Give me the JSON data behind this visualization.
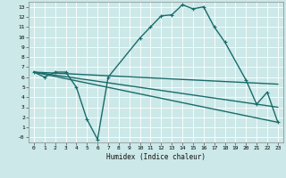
{
  "title": "",
  "xlabel": "Humidex (Indice chaleur)",
  "bg_color": "#cce8e8",
  "grid_color": "#ffffff",
  "line_color": "#1a6b6b",
  "xlim": [
    -0.5,
    23.5
  ],
  "ylim": [
    -0.5,
    13.5
  ],
  "xticks": [
    0,
    1,
    2,
    3,
    4,
    5,
    6,
    7,
    8,
    9,
    10,
    11,
    12,
    13,
    14,
    15,
    16,
    17,
    18,
    19,
    20,
    21,
    22,
    23
  ],
  "yticks": [
    0,
    1,
    2,
    3,
    4,
    5,
    6,
    7,
    8,
    9,
    10,
    11,
    12,
    13
  ],
  "ytick_labels": [
    "-0",
    "1",
    "2",
    "3",
    "4",
    "5",
    "6",
    "7",
    "8",
    "9",
    "10",
    "11",
    "12",
    "13"
  ],
  "curve1_x": [
    0,
    1,
    2,
    3,
    4,
    5,
    6,
    7,
    10,
    11,
    12,
    13,
    14,
    15,
    16,
    17,
    18,
    20,
    21,
    22,
    23
  ],
  "curve1_y": [
    6.5,
    6.0,
    6.5,
    6.5,
    5.0,
    1.8,
    -0.2,
    6.0,
    9.9,
    11.0,
    12.1,
    12.2,
    13.2,
    12.8,
    13.0,
    11.0,
    9.5,
    5.7,
    3.3,
    4.5,
    1.5
  ],
  "line2_x": [
    0,
    23
  ],
  "line2_y": [
    6.5,
    5.3
  ],
  "line3_x": [
    0,
    23
  ],
  "line3_y": [
    6.5,
    3.0
  ],
  "line4_x": [
    0,
    23
  ],
  "line4_y": [
    6.5,
    1.5
  ],
  "marker_size": 3,
  "line_width": 1.0
}
